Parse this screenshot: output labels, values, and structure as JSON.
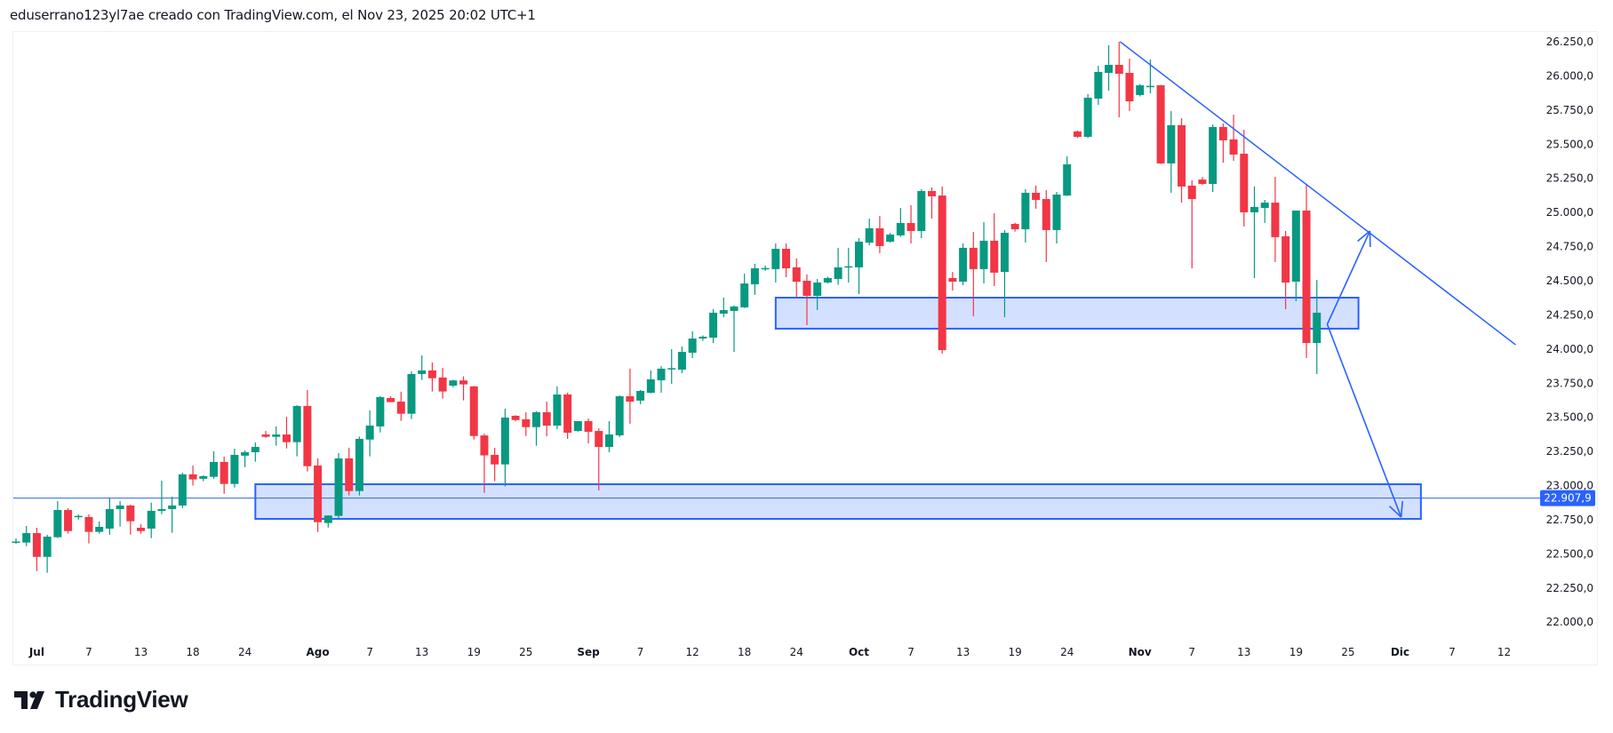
{
  "header": {
    "text": "eduserrano123yl7ae creado con TradingView.com, el Nov 23, 2025 20:02 UTC+1"
  },
  "logo": {
    "text": "TradingView"
  },
  "colors": {
    "up": "#089981",
    "down": "#F23645",
    "drawing": "#2962FF",
    "box_fill": "rgba(41,98,255,0.2)",
    "axis_text": "#131722"
  },
  "chart_data": {
    "type": "candlestick",
    "title": "",
    "x_unit": "bar index",
    "ylim": [
      21870,
      26330
    ],
    "grid": false,
    "y_ticks": [
      {
        "value": 26250,
        "label": "26.250,0"
      },
      {
        "value": 26000,
        "label": "26.000,0"
      },
      {
        "value": 25750,
        "label": "25.750,0"
      },
      {
        "value": 25500,
        "label": "25.500,0"
      },
      {
        "value": 25250,
        "label": "25.250,0"
      },
      {
        "value": 25000,
        "label": "25.000,0"
      },
      {
        "value": 24750,
        "label": "24.750,0"
      },
      {
        "value": 24500,
        "label": "24.500,0"
      },
      {
        "value": 24250,
        "label": "24.250,0"
      },
      {
        "value": 24000,
        "label": "24.000,0"
      },
      {
        "value": 23750,
        "label": "23.750,0"
      },
      {
        "value": 23500,
        "label": "23.500,0"
      },
      {
        "value": 23250,
        "label": "23.250,0"
      },
      {
        "value": 23000,
        "label": "23.000,0"
      },
      {
        "value": 22750,
        "label": "22.750,0"
      },
      {
        "value": 22500,
        "label": "22.500,0"
      },
      {
        "value": 22250,
        "label": "22.250,0"
      },
      {
        "value": 22000,
        "label": "22.000,0"
      }
    ],
    "x_ticks": [
      {
        "index": 2,
        "label": "Jul",
        "bold": true
      },
      {
        "index": 7,
        "label": "7"
      },
      {
        "index": 12,
        "label": "13"
      },
      {
        "index": 17,
        "label": "18"
      },
      {
        "index": 22,
        "label": "24"
      },
      {
        "index": 29,
        "label": "Ago",
        "bold": true
      },
      {
        "index": 34,
        "label": "7"
      },
      {
        "index": 39,
        "label": "13"
      },
      {
        "index": 44,
        "label": "19"
      },
      {
        "index": 49,
        "label": "25"
      },
      {
        "index": 55,
        "label": "Sep",
        "bold": true
      },
      {
        "index": 60,
        "label": "7"
      },
      {
        "index": 65,
        "label": "12"
      },
      {
        "index": 70,
        "label": "18"
      },
      {
        "index": 75,
        "label": "24"
      },
      {
        "index": 81,
        "label": "Oct",
        "bold": true
      },
      {
        "index": 86,
        "label": "7"
      },
      {
        "index": 91,
        "label": "13"
      },
      {
        "index": 96,
        "label": "19"
      },
      {
        "index": 101,
        "label": "24"
      },
      {
        "index": 108,
        "label": "Nov",
        "bold": true
      },
      {
        "index": 113,
        "label": "7"
      },
      {
        "index": 118,
        "label": "13"
      },
      {
        "index": 123,
        "label": "19"
      },
      {
        "index": 128,
        "label": "25"
      },
      {
        "index": 133,
        "label": "Dic",
        "bold": true
      },
      {
        "index": 138,
        "label": "7"
      },
      {
        "index": 143,
        "label": "12"
      }
    ],
    "ohlc": [
      [
        22585,
        22613,
        22575,
        22590
      ],
      [
        22583,
        22704,
        22556,
        22652
      ],
      [
        22652,
        22691,
        22374,
        22478
      ],
      [
        22478,
        22639,
        22361,
        22626
      ],
      [
        22622,
        22886,
        22615,
        22821
      ],
      [
        22821,
        22834,
        22648,
        22667
      ],
      [
        22776,
        22789,
        22750,
        22778
      ],
      [
        22770,
        22789,
        22576,
        22661
      ],
      [
        22661,
        22737,
        22648,
        22698
      ],
      [
        22685,
        22906,
        22641,
        22828
      ],
      [
        22828,
        22886,
        22700,
        22854
      ],
      [
        22854,
        22860,
        22641,
        22739
      ],
      [
        22691,
        22717,
        22648,
        22667
      ],
      [
        22685,
        22875,
        22615,
        22815
      ],
      [
        22815,
        23036,
        22791,
        22828
      ],
      [
        22828,
        22919,
        22654,
        22854
      ],
      [
        22854,
        23095,
        22836,
        23082
      ],
      [
        23082,
        23147,
        23000,
        23045
      ],
      [
        23050,
        23075,
        23032,
        23069
      ],
      [
        23064,
        23251,
        23050,
        23173
      ],
      [
        23173,
        23212,
        22940,
        23012
      ],
      [
        23012,
        23270,
        22986,
        23225
      ],
      [
        23219,
        23257,
        23135,
        23244
      ],
      [
        23244,
        23316,
        23175,
        23283
      ],
      [
        23374,
        23400,
        23350,
        23357
      ],
      [
        23357,
        23433,
        23292,
        23374
      ],
      [
        23374,
        23504,
        23272,
        23318
      ],
      [
        23318,
        23588,
        23214,
        23583
      ],
      [
        23583,
        23700,
        23103,
        23142
      ],
      [
        23147,
        23199,
        22661,
        22732
      ],
      [
        22726,
        22781,
        22693,
        22781
      ],
      [
        22778,
        23238,
        22758,
        23199
      ],
      [
        23199,
        23277,
        22928,
        22960
      ],
      [
        22960,
        23359,
        22928,
        23342
      ],
      [
        23337,
        23550,
        23214,
        23439
      ],
      [
        23433,
        23655,
        23389,
        23648
      ],
      [
        23641,
        23654,
        23611,
        23611
      ],
      [
        23615,
        23687,
        23474,
        23526
      ],
      [
        23526,
        23836,
        23487,
        23817
      ],
      [
        23817,
        23953,
        23773,
        23843
      ],
      [
        23843,
        23901,
        23689,
        23786
      ],
      [
        23791,
        23862,
        23637,
        23689
      ],
      [
        23732,
        23775,
        23720,
        23770
      ],
      [
        23770,
        23800,
        23624,
        23741
      ],
      [
        23726,
        23730,
        23337,
        23363
      ],
      [
        23367,
        23380,
        22947,
        23221
      ],
      [
        23225,
        23277,
        23032,
        23155
      ],
      [
        23155,
        23563,
        22993,
        23498
      ],
      [
        23511,
        23515,
        23470,
        23480
      ],
      [
        23485,
        23537,
        23363,
        23428
      ],
      [
        23428,
        23545,
        23292,
        23537
      ],
      [
        23537,
        23615,
        23361,
        23439
      ],
      [
        23439,
        23726,
        23413,
        23667
      ],
      [
        23667,
        23680,
        23342,
        23387
      ],
      [
        23400,
        23472,
        23395,
        23472
      ],
      [
        23472,
        23491,
        23309,
        23394
      ],
      [
        23400,
        23420,
        22964,
        23283
      ],
      [
        23283,
        23472,
        23244,
        23374
      ],
      [
        23368,
        23661,
        23355,
        23654
      ],
      [
        23654,
        23856,
        23453,
        23615
      ],
      [
        23622,
        23700,
        23596,
        23693
      ],
      [
        23680,
        23843,
        23675,
        23778
      ],
      [
        23771,
        23875,
        23680,
        23856
      ],
      [
        23856,
        23999,
        23745,
        23860
      ],
      [
        23849,
        24018,
        23823,
        23979
      ],
      [
        23973,
        24129,
        23934,
        24077
      ],
      [
        24077,
        24100,
        24060,
        24090
      ],
      [
        24083,
        24292,
        24044,
        24266
      ],
      [
        24259,
        24376,
        24233,
        24285
      ],
      [
        24279,
        24320,
        23979,
        24311
      ],
      [
        24305,
        24552,
        24300,
        24480
      ],
      [
        24474,
        24624,
        24396,
        24591
      ],
      [
        24591,
        24611,
        24572,
        24593
      ],
      [
        24585,
        24773,
        24487,
        24734
      ],
      [
        24734,
        24773,
        24526,
        24591
      ],
      [
        24598,
        24663,
        24383,
        24493
      ],
      [
        24500,
        24546,
        24175,
        24389
      ],
      [
        24389,
        24513,
        24285,
        24487
      ],
      [
        24487,
        24530,
        24480,
        24520
      ],
      [
        24513,
        24741,
        24470,
        24598
      ],
      [
        24604,
        24741,
        24487,
        24606
      ],
      [
        24598,
        24812,
        24402,
        24786
      ],
      [
        24779,
        24955,
        24760,
        24884
      ],
      [
        24884,
        24975,
        24702,
        24754
      ],
      [
        24786,
        24850,
        24780,
        24838
      ],
      [
        24832,
        25033,
        24820,
        24923
      ],
      [
        24923,
        25053,
        24773,
        24864
      ],
      [
        24864,
        25170,
        24812,
        25157
      ],
      [
        25157,
        25183,
        24955,
        25118
      ],
      [
        25124,
        25190,
        23966,
        23992
      ],
      [
        24520,
        24565,
        24428,
        24493
      ],
      [
        24493,
        24773,
        24467,
        24741
      ],
      [
        24741,
        24858,
        24240,
        24585
      ],
      [
        24585,
        24929,
        24480,
        24793
      ],
      [
        24793,
        24994,
        24461,
        24559
      ],
      [
        24565,
        24871,
        24233,
        24851
      ],
      [
        24916,
        24925,
        24860,
        24877
      ],
      [
        24877,
        25170,
        24780,
        25144
      ],
      [
        25144,
        25196,
        25027,
        25092
      ],
      [
        25098,
        25163,
        24637,
        24871
      ],
      [
        24871,
        25150,
        24773,
        25131
      ],
      [
        25124,
        25411,
        25120,
        25352
      ],
      [
        25593,
        25600,
        25545,
        25554
      ],
      [
        25554,
        25866,
        25545,
        25840
      ],
      [
        25834,
        26074,
        25788,
        26029
      ],
      [
        26022,
        26224,
        25892,
        26081
      ],
      [
        26081,
        26250,
        25697,
        26016
      ],
      [
        26022,
        26126,
        25742,
        25814
      ],
      [
        25860,
        25940,
        25850,
        25931
      ],
      [
        25925,
        26120,
        25873,
        25927
      ],
      [
        25931,
        25935,
        25355,
        25359
      ],
      [
        25359,
        25742,
        25144,
        25639
      ],
      [
        25639,
        25690,
        25072,
        25190
      ],
      [
        25196,
        25235,
        24591,
        25098
      ],
      [
        25241,
        25260,
        25200,
        25209
      ],
      [
        25209,
        25645,
        25150,
        25626
      ],
      [
        25626,
        25651,
        25365,
        25528
      ],
      [
        25535,
        25716,
        25378,
        25424
      ],
      [
        25430,
        25606,
        24897,
        25001
      ],
      [
        25001,
        25190,
        24519,
        25040
      ],
      [
        25033,
        25092,
        24923,
        25072
      ],
      [
        25072,
        25261,
        24637,
        24819
      ],
      [
        24825,
        24864,
        24292,
        24487
      ],
      [
        24493,
        25014,
        24350,
        25014
      ],
      [
        25014,
        25209,
        23934,
        24044
      ],
      [
        24044,
        24506,
        23817,
        24266
      ]
    ],
    "drawings": {
      "horizontal_line": {
        "price": 22907.9,
        "label": "22.907,9"
      },
      "trend_line": {
        "from": [
          106.1,
          26250
        ],
        "to": [
          144.1,
          24031
        ]
      },
      "zones": [
        {
          "from_index": 73,
          "to_index": 129,
          "top": 24376,
          "bottom": 24149
        },
        {
          "from_index": 23,
          "to_index": 135,
          "top": 23010,
          "bottom": 22756
        }
      ],
      "arrows": [
        {
          "from": [
            126,
            24181
          ],
          "to": [
            130.1,
            24864
          ]
        },
        {
          "from": [
            126,
            24181
          ],
          "to": [
            133.1,
            22769
          ]
        }
      ]
    }
  }
}
